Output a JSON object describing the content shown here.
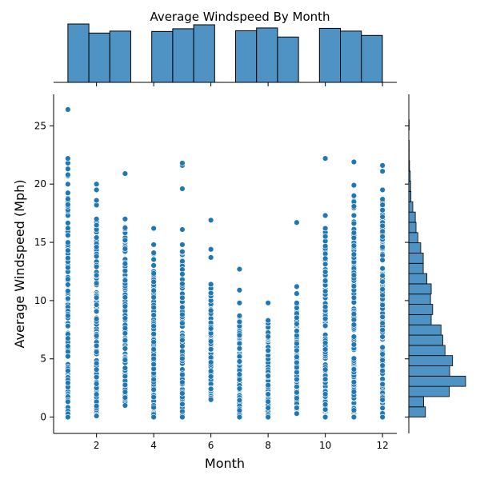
{
  "chart_data": {
    "type": "scatter",
    "title": "Average Windspeed By Month",
    "xlabel": "Month",
    "ylabel": "Average Windspeed (Mph)",
    "xlim": [
      0.5,
      12.5
    ],
    "ylim": [
      -1.4,
      27.7
    ],
    "x_ticks": [
      2,
      4,
      6,
      8,
      10,
      12
    ],
    "y_ticks": [
      0,
      5,
      10,
      15,
      20,
      25
    ],
    "grid": false,
    "color": "#1f77b4",
    "hist_color": "#4f93c4",
    "marginal_x": {
      "type": "histogram",
      "bin_width": 0.733,
      "bin_start": 1.0,
      "counts": [
        148,
        125,
        130,
        0,
        129,
        136,
        146,
        0,
        131,
        138,
        115,
        0,
        137,
        130,
        119
      ]
    },
    "marginal_y": {
      "type": "histogram",
      "bin_width": 0.88,
      "bin_start": 0.0,
      "counts": [
        46,
        41,
        112,
        157,
        113,
        121,
        100,
        94,
        89,
        62,
        66,
        60,
        62,
        50,
        40,
        40,
        33,
        25,
        20,
        18,
        11,
        6,
        5,
        4,
        2,
        1,
        1,
        0,
        1,
        0
      ]
    },
    "series": [
      {
        "values_by_month": {
          "1": {
            "dense_max": 20.8,
            "outliers": [
              21.3,
              21.8,
              22.2,
              26.4
            ]
          },
          "2": {
            "dense_max": 17.0,
            "outliers": [
              18.2,
              18.6,
              19.5,
              20.0
            ]
          },
          "3": {
            "dense_max": 17.0,
            "outliers": [
              20.9
            ]
          },
          "4": {
            "dense_max": 14.1,
            "outliers": [
              14.8,
              16.2
            ]
          },
          "5": {
            "dense_max": 14.2,
            "outliers": [
              14.8,
              16.1,
              19.6,
              21.6,
              21.8
            ]
          },
          "6": {
            "dense_max": 11.4,
            "outliers": [
              13.7,
              14.4,
              16.9
            ]
          },
          "7": {
            "dense_max": 8.7,
            "outliers": [
              9.8,
              10.9,
              12.7
            ]
          },
          "8": {
            "dense_max": 8.3,
            "outliers": [
              9.8
            ]
          },
          "9": {
            "dense_max": 9.8,
            "outliers": [
              10.6,
              11.2,
              16.7
            ]
          },
          "10": {
            "dense_max": 16.2,
            "outliers": [
              17.3,
              22.2
            ]
          },
          "11": {
            "dense_max": 19.0,
            "outliers": [
              19.9,
              21.9
            ]
          },
          "12": {
            "dense_max": 18.7,
            "outliers": [
              19.5,
              21.1,
              21.6
            ]
          }
        },
        "min_values": [
          0.0,
          0.1,
          1.0,
          0.0,
          0.0,
          1.5,
          0.0,
          0.0,
          0.3,
          0.0,
          0.0,
          0.0
        ]
      }
    ]
  }
}
